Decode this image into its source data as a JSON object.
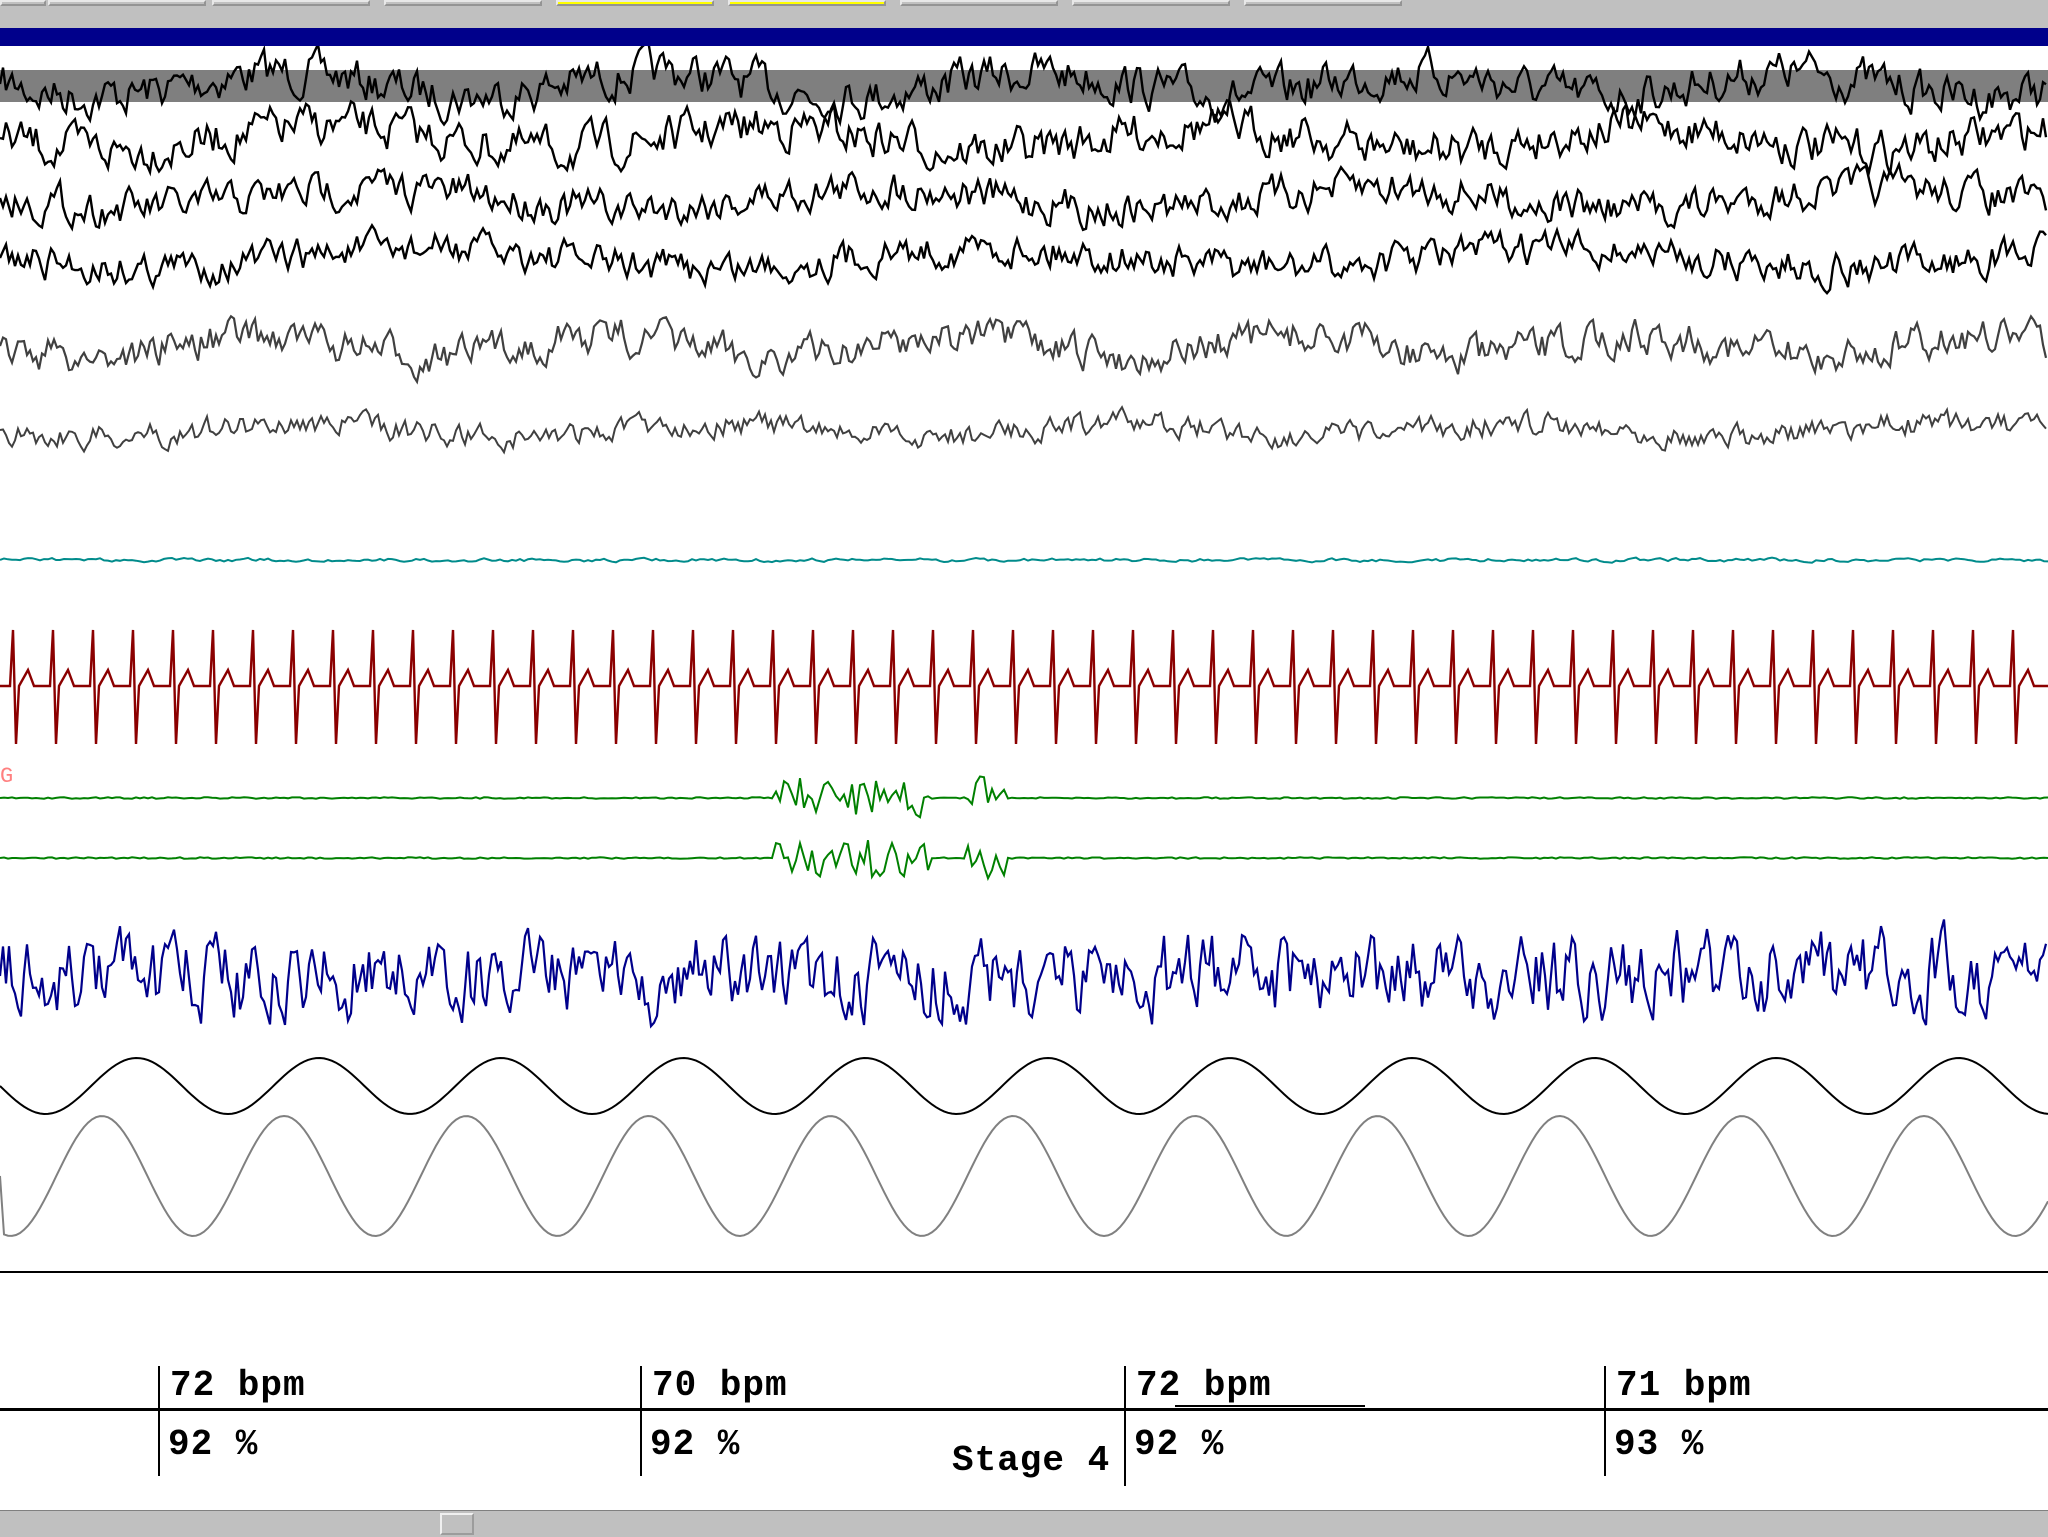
{
  "channel_tag": "G",
  "summary": {
    "epochs": [
      {
        "heart_rate": "72 bpm",
        "spo2": "92 %"
      },
      {
        "heart_rate": "70 bpm",
        "spo2": "92 %"
      },
      {
        "heart_rate": "72 bpm",
        "spo2": "92 %"
      },
      {
        "heart_rate": "71 bpm",
        "spo2": "93 %"
      }
    ],
    "stage": "Stage 4"
  },
  "colors": {
    "eeg": "#000000",
    "eog": "#404040",
    "chin": "#008b8b",
    "ecg": "#8b0000",
    "leg": "#008000",
    "snore": "#00008b",
    "resp": "#808080",
    "highlight": "#ffff00",
    "titlebar": "#00008b"
  }
}
